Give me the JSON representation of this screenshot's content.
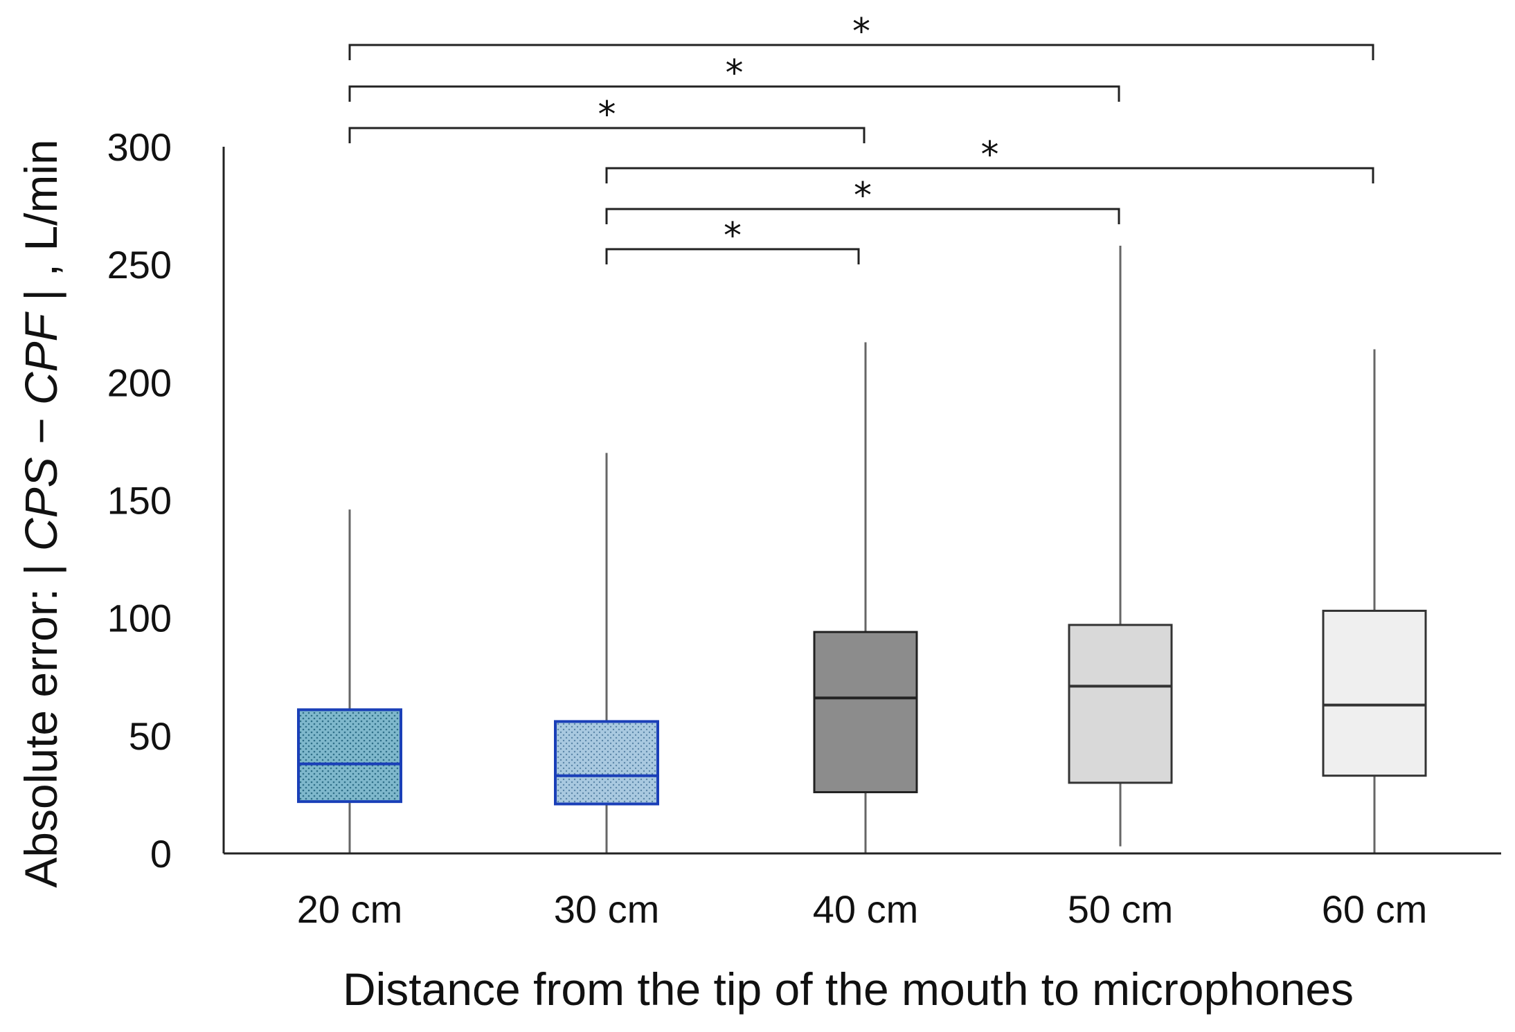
{
  "chart_data": {
    "type": "box",
    "title": "",
    "xlabel": "Distance from the tip of the mouth to microphones",
    "ylabel": {
      "prefix": "Absolute error: | ",
      "term1": "CPS",
      "minus": " − ",
      "term2": "CPF",
      "suffix": " | , L/min"
    },
    "ylim": [
      0,
      300
    ],
    "yticks": [
      "0",
      "50",
      "100",
      "150",
      "200",
      "250",
      "300"
    ],
    "categories": [
      "20 cm",
      "30 cm",
      "40 cm",
      "50 cm",
      "60 cm"
    ],
    "series": [
      {
        "name": "20 cm",
        "min": 0,
        "q1": 22,
        "median": 38,
        "q3": 61,
        "max": 146,
        "fill": "#7fb8cc",
        "edge": "#1a3fb8",
        "pattern": "dots"
      },
      {
        "name": "30 cm",
        "min": 0,
        "q1": 21,
        "median": 33,
        "q3": 56,
        "max": 170,
        "fill": "#a9c9e0",
        "edge": "#1a3fb8",
        "pattern": "dots"
      },
      {
        "name": "40 cm",
        "min": 0,
        "q1": 26,
        "median": 66,
        "q3": 94,
        "max": 217,
        "fill": "#8c8c8c",
        "edge": "#222222",
        "pattern": "none"
      },
      {
        "name": "50 cm",
        "min": 3,
        "q1": 30,
        "median": 71,
        "q3": 97,
        "max": 258,
        "fill": "#d9d9d9",
        "edge": "#333333",
        "pattern": "none"
      },
      {
        "name": "60 cm",
        "min": 0,
        "q1": 33,
        "median": 63,
        "q3": 103,
        "max": 214,
        "fill": "#efefef",
        "edge": "#333333",
        "pattern": "none"
      }
    ],
    "significance": [
      {
        "from": 0,
        "to": 4,
        "label": "*"
      },
      {
        "from": 0,
        "to": 3,
        "label": "*"
      },
      {
        "from": 0,
        "to": 2,
        "label": "*"
      },
      {
        "from": 1,
        "to": 4,
        "label": "*"
      },
      {
        "from": 1,
        "to": 3,
        "label": "*"
      },
      {
        "from": 1,
        "to": 2,
        "label": "*"
      }
    ]
  }
}
